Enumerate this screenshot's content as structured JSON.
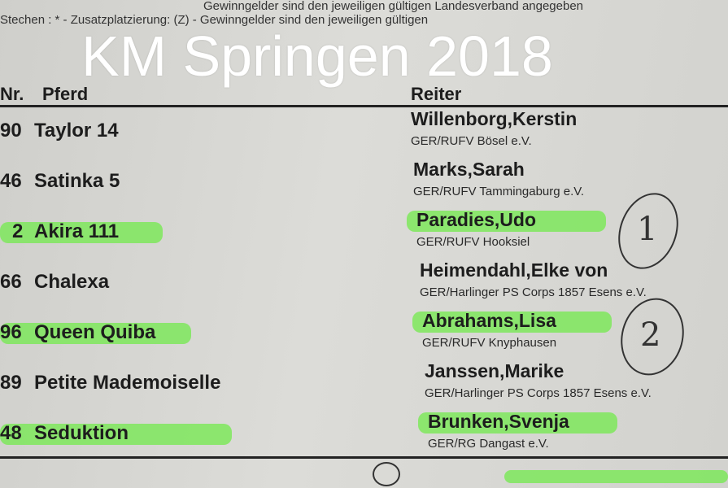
{
  "header": {
    "line1": "Gewinngelder sind den jeweiligen gültigen Landesverband angegeben",
    "line2": "Stechen : * - Zusatzplatzierung: (Z) - Gewinngelder sind den jeweiligen gültigen",
    "col_nr": "Nr.",
    "col_horse": "Pferd",
    "col_rider": "Reiter"
  },
  "watermark": "KM Springen 2018",
  "entries": [
    {
      "nr": "90",
      "horse": "Taylor 14",
      "rider": "Willenborg,Kerstin",
      "club": "GER/RUFV Bösel e.V.",
      "highlighted": false
    },
    {
      "nr": "46",
      "horse": "Satinka 5",
      "rider": "Marks,Sarah",
      "club": "GER/RUFV Tammingaburg e.V.",
      "highlighted": false
    },
    {
      "nr": "2",
      "horse": "Akira 111",
      "rider": "Paradies,Udo",
      "club": "GER/RUFV Hooksiel",
      "highlighted": true
    },
    {
      "nr": "66",
      "horse": "Chalexa",
      "rider": "Heimendahl,Elke von",
      "club": "GER/Harlinger PS Corps 1857 Esens e.V.",
      "highlighted": false
    },
    {
      "nr": "96",
      "horse": "Queen Quiba",
      "rider": "Abrahams,Lisa",
      "club": "GER/RUFV Knyphausen",
      "highlighted": true
    },
    {
      "nr": "89",
      "horse": "Petite Mademoiselle",
      "rider": "Janssen,Marike",
      "club": "GER/Harlinger PS Corps 1857 Esens e.V.",
      "highlighted": false
    },
    {
      "nr": "48",
      "horse": "Seduktion",
      "rider": "Brunken,Svenja",
      "club": "GER/RG Dangast e.V.",
      "highlighted": true
    }
  ],
  "annotations": {
    "place1": "1",
    "place2": "2"
  },
  "highlight_color": "#7ee85c"
}
